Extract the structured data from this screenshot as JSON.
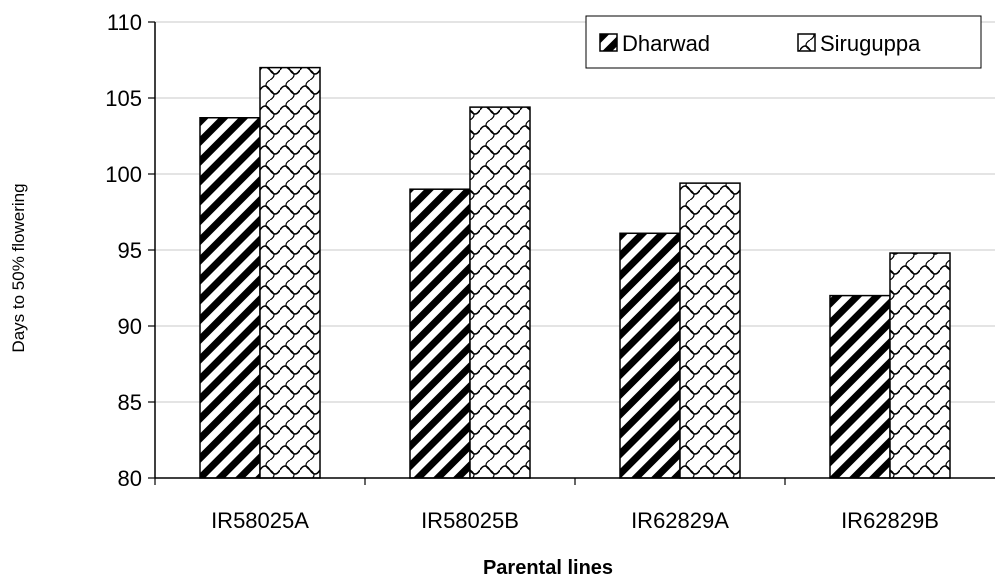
{
  "chart_data": {
    "type": "bar",
    "title": "",
    "xlabel": "Parental lines",
    "ylabel": "Days to 50% flowering",
    "categories": [
      "IR58025A",
      "IR58025B",
      "IR62829A",
      "IR62829B"
    ],
    "series": [
      {
        "name": "Dharwad",
        "values": [
          103.7,
          99.0,
          96.1,
          92.0
        ],
        "pattern": "diagonal-hatch"
      },
      {
        "name": "Siruguppa",
        "values": [
          107.0,
          104.4,
          99.4,
          94.8
        ],
        "pattern": "wave-lattice"
      }
    ],
    "ylim": [
      80,
      110
    ],
    "yticks": [
      "80",
      "85",
      "90",
      "95",
      "100",
      "105",
      "110"
    ],
    "grid": true,
    "legend_position": "top-right",
    "colors": {
      "bar_stroke": "#000000",
      "hatch": "#000000",
      "grid": "#c8c8c8",
      "fill": "#ffffff"
    }
  }
}
